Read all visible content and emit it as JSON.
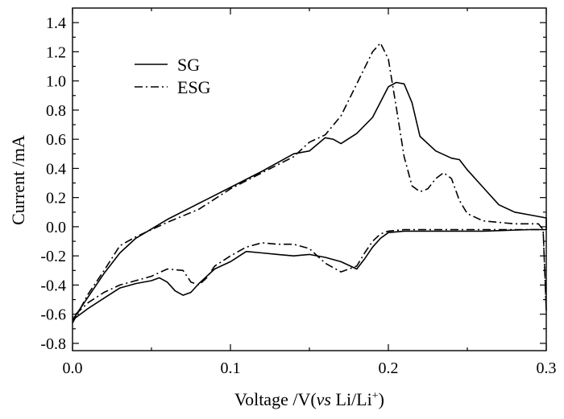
{
  "chart_data": {
    "type": "line",
    "xlabel_main": "Voltage /V(",
    "xlabel_vs": "vs",
    "xlabel_li": " Li/Li",
    "xlabel_sup": "+",
    "xlabel_close": ")",
    "ylabel": "Current /mA",
    "xlim": [
      0.0,
      0.3
    ],
    "ylim": [
      -0.85,
      1.5
    ],
    "xticks": [
      0.0,
      0.1,
      0.2,
      0.3
    ],
    "xtick_labels": [
      "0.0",
      "0.1",
      "0.2",
      "0.3"
    ],
    "yticks": [
      -0.8,
      -0.6,
      -0.4,
      -0.2,
      0.0,
      0.2,
      0.4,
      0.6,
      0.8,
      1.0,
      1.2,
      1.4
    ],
    "ytick_labels": [
      "-0.8",
      "-0.6",
      "-0.4",
      "-0.2",
      "0.0",
      "0.2",
      "0.4",
      "0.6",
      "0.8",
      "1.0",
      "1.2",
      "1.4"
    ],
    "legend_position": "top-left",
    "series": [
      {
        "name": "SG",
        "style": "solid",
        "x": [
          0.0,
          0.01,
          0.02,
          0.03,
          0.04,
          0.06,
          0.08,
          0.1,
          0.12,
          0.14,
          0.15,
          0.16,
          0.165,
          0.17,
          0.18,
          0.19,
          0.2,
          0.205,
          0.21,
          0.215,
          0.22,
          0.23,
          0.24,
          0.245,
          0.25,
          0.26,
          0.27,
          0.28,
          0.29,
          0.3,
          0.3,
          0.29,
          0.26,
          0.23,
          0.21,
          0.2,
          0.195,
          0.19,
          0.185,
          0.18,
          0.17,
          0.16,
          0.15,
          0.14,
          0.13,
          0.12,
          0.11,
          0.1,
          0.09,
          0.08,
          0.075,
          0.07,
          0.065,
          0.06,
          0.055,
          0.05,
          0.04,
          0.03,
          0.02,
          0.01,
          0.0
        ],
        "y": [
          -0.64,
          -0.48,
          -0.32,
          -0.18,
          -0.08,
          0.05,
          0.16,
          0.27,
          0.38,
          0.5,
          0.52,
          0.61,
          0.6,
          0.57,
          0.64,
          0.75,
          0.96,
          0.99,
          0.98,
          0.85,
          0.62,
          0.52,
          0.47,
          0.46,
          0.39,
          0.27,
          0.15,
          0.1,
          0.08,
          0.06,
          -0.02,
          -0.02,
          -0.03,
          -0.03,
          -0.03,
          -0.04,
          -0.08,
          -0.14,
          -0.22,
          -0.29,
          -0.24,
          -0.21,
          -0.19,
          -0.2,
          -0.19,
          -0.18,
          -0.17,
          -0.24,
          -0.29,
          -0.39,
          -0.45,
          -0.47,
          -0.44,
          -0.38,
          -0.35,
          -0.37,
          -0.39,
          -0.42,
          -0.49,
          -0.56,
          -0.64
        ]
      },
      {
        "name": "ESG",
        "style": "dash-dot",
        "x": [
          0.0,
          0.01,
          0.02,
          0.03,
          0.04,
          0.06,
          0.08,
          0.1,
          0.12,
          0.14,
          0.15,
          0.16,
          0.17,
          0.18,
          0.19,
          0.195,
          0.2,
          0.205,
          0.21,
          0.215,
          0.22,
          0.225,
          0.23,
          0.235,
          0.24,
          0.245,
          0.25,
          0.26,
          0.27,
          0.28,
          0.29,
          0.295,
          0.298,
          0.3,
          0.298,
          0.295,
          0.29,
          0.26,
          0.23,
          0.21,
          0.2,
          0.195,
          0.19,
          0.185,
          0.18,
          0.17,
          0.16,
          0.15,
          0.14,
          0.13,
          0.12,
          0.11,
          0.1,
          0.09,
          0.085,
          0.08,
          0.075,
          0.07,
          0.06,
          0.05,
          0.04,
          0.03,
          0.02,
          0.01,
          0.0
        ],
        "y": [
          -0.66,
          -0.46,
          -0.3,
          -0.13,
          -0.07,
          0.03,
          0.12,
          0.26,
          0.37,
          0.48,
          0.58,
          0.63,
          0.76,
          0.98,
          1.2,
          1.26,
          1.15,
          0.82,
          0.48,
          0.28,
          0.24,
          0.26,
          0.33,
          0.37,
          0.33,
          0.18,
          0.09,
          0.04,
          0.03,
          0.02,
          0.02,
          0.02,
          -0.02,
          -0.58,
          -0.02,
          -0.02,
          -0.02,
          -0.02,
          -0.02,
          -0.02,
          -0.03,
          -0.05,
          -0.1,
          -0.18,
          -0.27,
          -0.31,
          -0.25,
          -0.15,
          -0.12,
          -0.12,
          -0.11,
          -0.14,
          -0.2,
          -0.27,
          -0.35,
          -0.4,
          -0.38,
          -0.3,
          -0.29,
          -0.34,
          -0.37,
          -0.4,
          -0.45,
          -0.52,
          -0.62
        ]
      }
    ]
  }
}
